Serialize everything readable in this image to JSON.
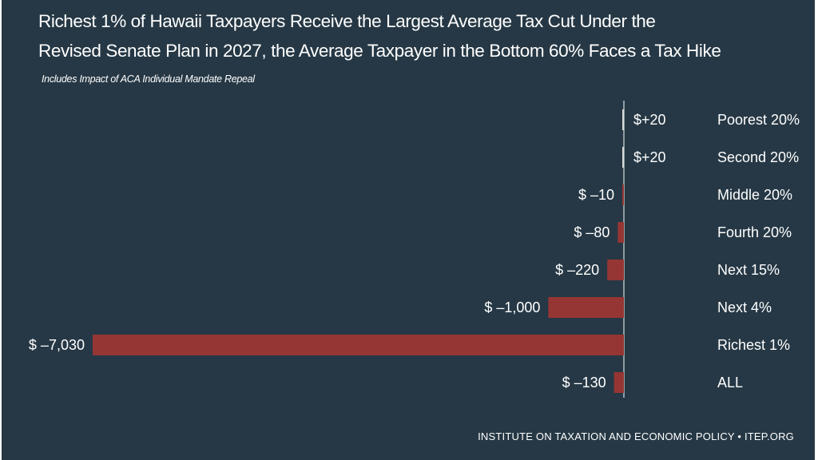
{
  "title_line1": "Richest 1% of  Hawaii Taxpayers Receive the Largest Average Tax Cut Under the",
  "title_line2": "Revised Senate Plan in 2027, the Average Taxpayer in the Bottom 60% Faces a Tax Hike",
  "subtitle": "Includes Impact of ACA Individual Mandate Repeal",
  "footer": "INSTITUTE ON TAXATION AND ECONOMIC POLICY • ITEP.ORG",
  "colors": {
    "background": "#263845",
    "bar": "#963634",
    "text": "#ffffff"
  },
  "chart_data": {
    "type": "bar",
    "orientation": "horizontal",
    "categories": [
      "Poorest 20%",
      "Second 20%",
      "Middle 20%",
      "Fourth 20%",
      "Next 15%",
      "Next 4%",
      "Richest 1%",
      "ALL"
    ],
    "values": [
      20,
      20,
      -10,
      -80,
      -220,
      -1000,
      -7030,
      -130
    ],
    "value_labels": [
      "$+20",
      "$+20",
      "$ –10",
      "$ –80",
      "$ –220",
      "$ –1,000",
      "$ –7,030",
      "$ –130"
    ],
    "title": "Richest 1% of  Hawaii Taxpayers Receive the Largest Average Tax Cut Under the Revised Senate Plan in 2027, the Average Taxpayer in the Bottom 60% Faces a Tax Hike",
    "subtitle": "Includes Impact of ACA Individual Mandate Repeal",
    "xlabel": "",
    "ylabel": "",
    "grid": false,
    "legend": "none"
  }
}
